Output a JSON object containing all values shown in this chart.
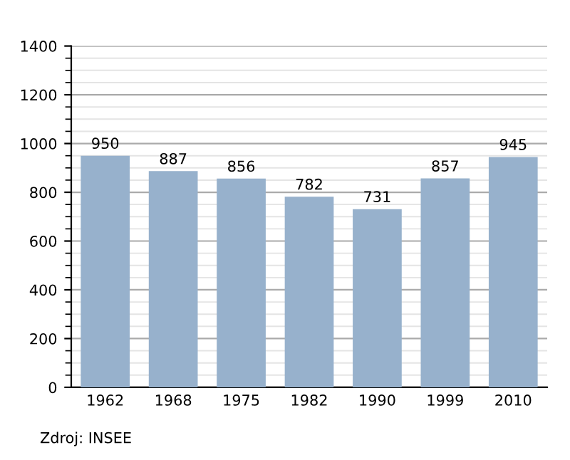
{
  "chart_data": {
    "type": "bar",
    "categories": [
      "1962",
      "1968",
      "1975",
      "1982",
      "1990",
      "1999",
      "2010"
    ],
    "values": [
      950,
      887,
      856,
      782,
      731,
      857,
      945
    ],
    "color": "#97b1cc",
    "ylim": [
      0,
      1400
    ],
    "yticks": [
      0,
      200,
      400,
      600,
      800,
      1000,
      1200,
      1400
    ],
    "grid": "y",
    "data_labels": true,
    "annotations": [
      "Zdroj: INSEE"
    ]
  }
}
